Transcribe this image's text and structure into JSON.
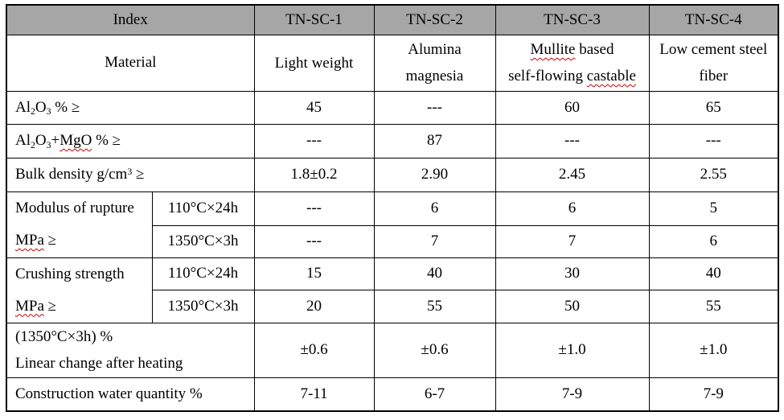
{
  "colors": {
    "header_bg": "#a6a6a6",
    "border": "#000000",
    "squiggle": "#cc0000",
    "text": "#000000"
  },
  "table": {
    "header": {
      "index": "Index",
      "products": [
        "TN-SC-1",
        "TN-SC-2",
        "TN-SC-3",
        "TN-SC-4"
      ]
    },
    "material": {
      "label": "Material",
      "cells": [
        {
          "lines": [
            [
              {
                "t": "Light weight"
              }
            ]
          ]
        },
        {
          "lines": [
            [
              {
                "t": "Alumina"
              }
            ],
            [
              {
                "t": "magnesia"
              }
            ]
          ]
        },
        {
          "lines": [
            [
              {
                "t": "Mullite",
                "w": true
              },
              {
                "t": " based"
              }
            ],
            [
              {
                "t": "self-flowing "
              },
              {
                "t": "castable",
                "w": true
              }
            ]
          ]
        },
        {
          "lines": [
            [
              {
                "t": "Low cement steel"
              }
            ],
            [
              {
                "t": "fiber"
              }
            ]
          ]
        }
      ]
    },
    "rows": {
      "al2o3": {
        "label": [
          {
            "t": "Al"
          },
          {
            "t": "2",
            "sub": true
          },
          {
            "t": "O"
          },
          {
            "t": "3",
            "sub": true
          },
          {
            "t": " % ≥"
          }
        ],
        "values": [
          "45",
          "---",
          "60",
          "65"
        ]
      },
      "al2o3_mgo": {
        "label": [
          {
            "t": "Al"
          },
          {
            "t": "2",
            "sub": true
          },
          {
            "t": "O"
          },
          {
            "t": "3",
            "sub": true
          },
          {
            "t": "+"
          },
          {
            "t": "MgO",
            "w": true
          },
          {
            "t": " % ≥"
          }
        ],
        "values": [
          "---",
          "87",
          "---",
          "---"
        ]
      },
      "bulk_density": {
        "label": [
          {
            "t": "Bulk density g/cm"
          },
          {
            "t": "3",
            "sup": true
          },
          {
            "t": " ≥"
          }
        ],
        "values": [
          "1.8±0.2",
          "2.90",
          "2.45",
          "2.55"
        ]
      },
      "modulus": {
        "label_line1": "Modulus of rupture",
        "label_line2": [
          {
            "t": "MPa",
            "w": true
          },
          {
            "t": " ≥"
          }
        ],
        "conditions": [
          "110°C×24h",
          "1350°C×3h"
        ],
        "values": [
          [
            "---",
            "6",
            "6",
            "5"
          ],
          [
            "---",
            "7",
            "7",
            "6"
          ]
        ]
      },
      "crushing": {
        "label_line1": "Crushing strength",
        "label_line2": [
          {
            "t": "MPa",
            "w": true
          },
          {
            "t": " ≥"
          }
        ],
        "conditions": [
          "110°C×24h",
          "1350°C×3h"
        ],
        "values": [
          [
            "15",
            "40",
            "30",
            "40"
          ],
          [
            "20",
            "55",
            "50",
            "55"
          ]
        ]
      },
      "linear_change": {
        "label_line1": "(1350°C×3h) %",
        "label_line2": "Linear change after heating",
        "values": [
          "±0.6",
          "±0.6",
          "±1.0",
          "±1.0"
        ]
      },
      "water": {
        "label": "Construction water quantity %",
        "values": [
          "7-11",
          "6-7",
          "7-9",
          "7-9"
        ]
      }
    }
  }
}
